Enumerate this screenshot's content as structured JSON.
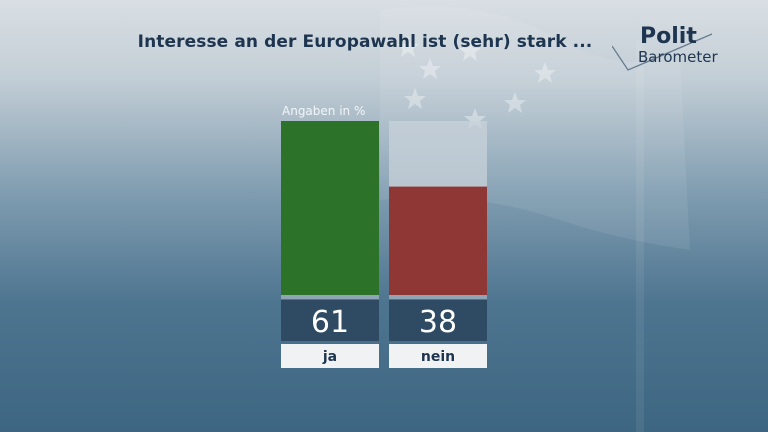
{
  "title": "Interesse an der Europawahl ist (sehr) stark ...",
  "logo": {
    "line1": "Polit",
    "line2": "Barometer"
  },
  "unit_label": "Angaben in %",
  "chart_data": {
    "type": "bar",
    "categories": [
      "ja",
      "nein"
    ],
    "values": [
      61,
      38
    ],
    "ylim": [
      0,
      61
    ],
    "colors": [
      "#2c7228",
      "#8f3734"
    ],
    "track_color": "#c8d2da",
    "value_box_color": "#2f4a63",
    "label_box_color": "#f1f2f3",
    "grid": false
  }
}
